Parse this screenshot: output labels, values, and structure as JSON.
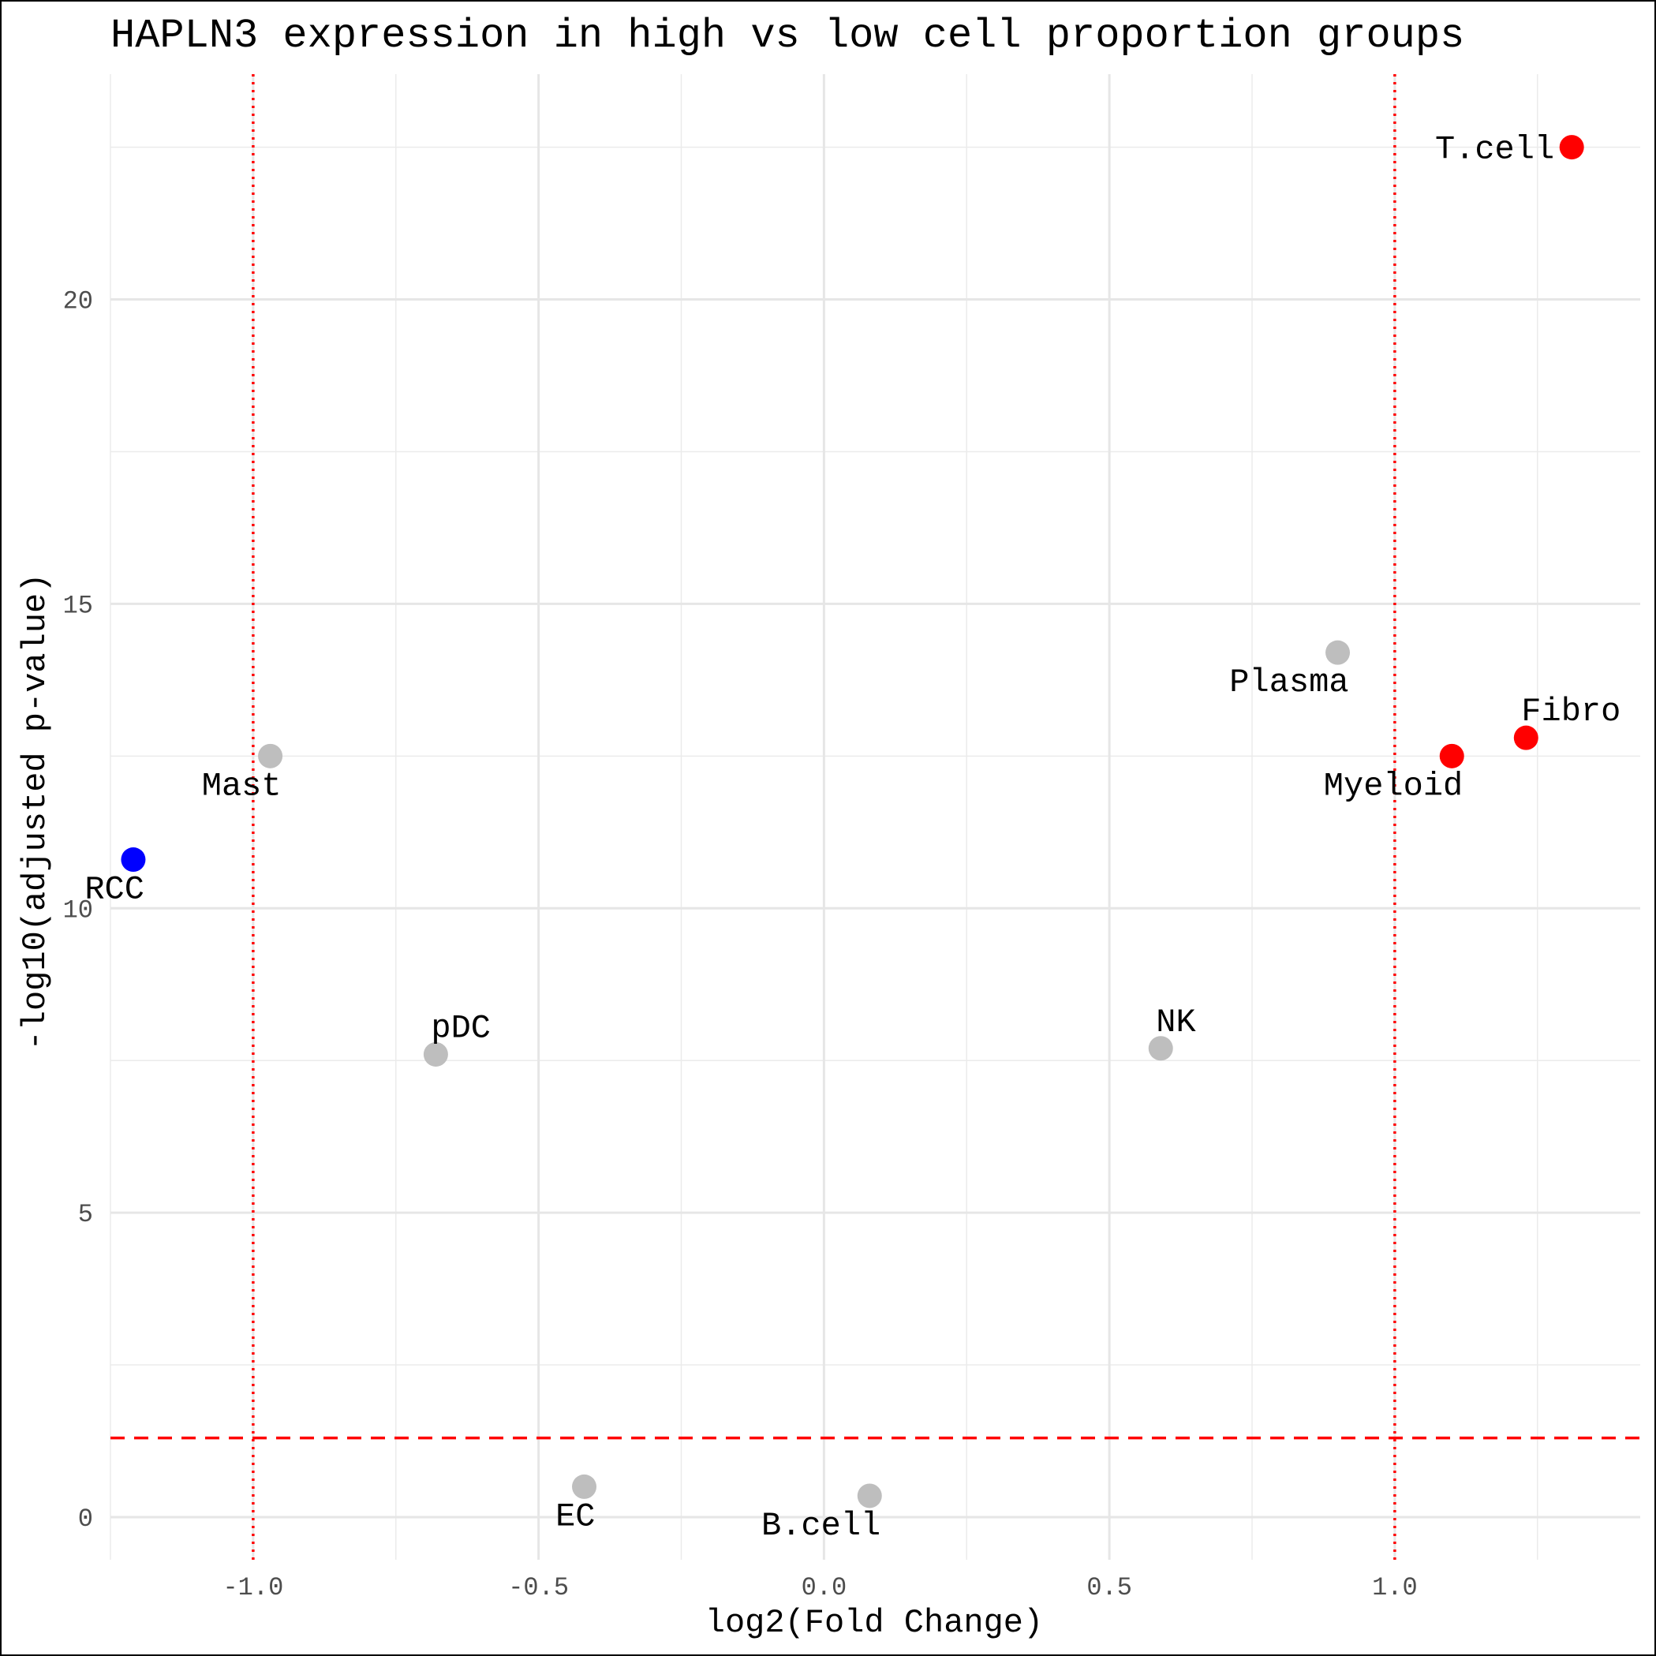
{
  "chart_data": {
    "type": "scatter",
    "title": "HAPLN3 expression in high vs low cell proportion groups",
    "xlabel": "log2(Fold Change)",
    "ylabel": "-log10(adjusted p-value)",
    "xlim": [
      -1.25,
      1.43
    ],
    "ylim": [
      -0.7,
      23.7
    ],
    "x_ticks": [
      -1.0,
      -0.5,
      0.0,
      0.5,
      1.0
    ],
    "x_tick_labels": [
      "-1.0",
      "-0.5",
      "0.0",
      "0.5",
      "1.0"
    ],
    "y_ticks": [
      0,
      5,
      10,
      15,
      20
    ],
    "y_tick_labels": [
      "0",
      "5",
      "10",
      "15",
      "20"
    ],
    "grid": true,
    "reference_lines": {
      "vertical_dotted_x": [
        -1.0,
        1.0
      ],
      "horizontal_dashed_y": 1.3,
      "color": "#ff0000"
    },
    "colors": {
      "up": "#ff0000",
      "down": "#0000ff",
      "ns": "#bebebe"
    },
    "points": [
      {
        "label": "T.cell",
        "x": 1.31,
        "y": 22.5,
        "group": "up",
        "label_pos": "left"
      },
      {
        "label": "Plasma",
        "x": 0.9,
        "y": 14.2,
        "group": "ns",
        "label_pos": "below-left"
      },
      {
        "label": "Fibro",
        "x": 1.23,
        "y": 12.8,
        "group": "up",
        "label_pos": "above-right"
      },
      {
        "label": "Myeloid",
        "x": 1.1,
        "y": 12.5,
        "group": "up",
        "label_pos": "below-left"
      },
      {
        "label": "Mast",
        "x": -0.97,
        "y": 12.5,
        "group": "ns",
        "label_pos": "below-left"
      },
      {
        "label": "RCC",
        "x": -1.21,
        "y": 10.8,
        "group": "down",
        "label_pos": "below-left"
      },
      {
        "label": "NK",
        "x": 0.59,
        "y": 7.7,
        "group": "ns",
        "label_pos": "above-right"
      },
      {
        "label": "pDC",
        "x": -0.68,
        "y": 7.6,
        "group": "ns",
        "label_pos": "above-right"
      },
      {
        "label": "EC",
        "x": -0.42,
        "y": 0.5,
        "group": "ns",
        "label_pos": "below-left"
      },
      {
        "label": "B.cell",
        "x": 0.08,
        "y": 0.35,
        "group": "ns",
        "label_pos": "below-left"
      }
    ]
  }
}
